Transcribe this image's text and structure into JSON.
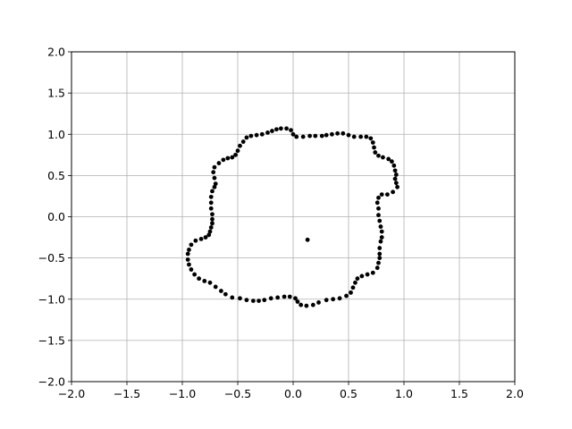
{
  "chart_data": {
    "type": "scatter",
    "title": "",
    "xlabel": "",
    "ylabel": "",
    "xlim": [
      -2.0,
      2.0
    ],
    "ylim": [
      -2.0,
      2.0
    ],
    "grid": true,
    "x_ticks": [
      -2.0,
      -1.5,
      -1.0,
      -0.5,
      0.0,
      0.5,
      1.0,
      1.5,
      2.0
    ],
    "y_ticks": [
      -2.0,
      -1.5,
      -1.0,
      -0.5,
      0.0,
      0.5,
      1.0,
      1.5,
      2.0
    ],
    "x_tick_labels": [
      "−2.0",
      "−1.5",
      "−1.0",
      "−0.5",
      "0.0",
      "0.5",
      "1.0",
      "1.5",
      "2.0"
    ],
    "y_tick_labels": [
      "−2.0",
      "−1.5",
      "−1.0",
      "−0.5",
      "0.0",
      "0.5",
      "1.0",
      "1.5",
      "2.0"
    ],
    "marker_color": "#000000",
    "grid_color": "#b0b0b0",
    "series": [
      {
        "values": [
          [
            0.93,
            0.41
          ],
          [
            0.94,
            0.36
          ],
          [
            0.9,
            0.3
          ],
          [
            0.85,
            0.27
          ],
          [
            0.8,
            0.27
          ],
          [
            0.77,
            0.23
          ],
          [
            0.76,
            0.17
          ],
          [
            0.77,
            0.1
          ],
          [
            0.77,
            0.02
          ],
          [
            0.78,
            -0.05
          ],
          [
            0.79,
            -0.12
          ],
          [
            0.8,
            -0.18
          ],
          [
            0.8,
            -0.25
          ],
          [
            0.79,
            -0.3
          ],
          [
            0.78,
            -0.38
          ],
          [
            0.78,
            -0.45
          ],
          [
            0.78,
            -0.5
          ],
          [
            0.77,
            -0.56
          ],
          [
            0.76,
            -0.62
          ],
          [
            0.72,
            -0.68
          ],
          [
            0.67,
            -0.7
          ],
          [
            0.62,
            -0.72
          ],
          [
            0.58,
            -0.75
          ],
          [
            0.56,
            -0.8
          ],
          [
            0.54,
            -0.86
          ],
          [
            0.52,
            -0.92
          ],
          [
            0.48,
            -0.96
          ],
          [
            0.42,
            -0.99
          ],
          [
            0.36,
            -1.0
          ],
          [
            0.3,
            -1.01
          ],
          [
            0.23,
            -1.04
          ],
          [
            0.18,
            -1.07
          ],
          [
            0.12,
            -1.08
          ],
          [
            0.07,
            -1.07
          ],
          [
            0.04,
            -1.03
          ],
          [
            0.02,
            -0.99
          ],
          [
            -0.03,
            -0.97
          ],
          [
            -0.08,
            -0.97
          ],
          [
            -0.14,
            -0.98
          ],
          [
            -0.2,
            -0.99
          ],
          [
            -0.26,
            -1.01
          ],
          [
            -0.31,
            -1.02
          ],
          [
            -0.36,
            -1.02
          ],
          [
            -0.42,
            -1.01
          ],
          [
            -0.48,
            -0.99
          ],
          [
            -0.55,
            -0.98
          ],
          [
            -0.61,
            -0.94
          ],
          [
            -0.65,
            -0.9
          ],
          [
            -0.7,
            -0.85
          ],
          [
            -0.75,
            -0.8
          ],
          [
            -0.8,
            -0.78
          ],
          [
            -0.85,
            -0.75
          ],
          [
            -0.89,
            -0.7
          ],
          [
            -0.92,
            -0.64
          ],
          [
            -0.94,
            -0.58
          ],
          [
            -0.95,
            -0.52
          ],
          [
            -0.95,
            -0.45
          ],
          [
            -0.94,
            -0.4
          ],
          [
            -0.92,
            -0.34
          ],
          [
            -0.88,
            -0.29
          ],
          [
            -0.83,
            -0.27
          ],
          [
            -0.79,
            -0.25
          ],
          [
            -0.76,
            -0.22
          ],
          [
            -0.75,
            -0.18
          ],
          [
            -0.74,
            -0.13
          ],
          [
            -0.73,
            -0.08
          ],
          [
            -0.73,
            -0.03
          ],
          [
            -0.73,
            0.03
          ],
          [
            -0.74,
            0.1
          ],
          [
            -0.74,
            0.17
          ],
          [
            -0.74,
            0.24
          ],
          [
            -0.73,
            0.31
          ],
          [
            -0.71,
            0.36
          ],
          [
            -0.7,
            0.4
          ],
          [
            -0.71,
            0.47
          ],
          [
            -0.72,
            0.54
          ],
          [
            -0.71,
            0.6
          ],
          [
            -0.67,
            0.65
          ],
          [
            -0.63,
            0.69
          ],
          [
            -0.59,
            0.71
          ],
          [
            -0.55,
            0.72
          ],
          [
            -0.52,
            0.75
          ],
          [
            -0.5,
            0.8
          ],
          [
            -0.48,
            0.86
          ],
          [
            -0.45,
            0.91
          ],
          [
            -0.42,
            0.96
          ],
          [
            -0.38,
            0.98
          ],
          [
            -0.33,
            0.99
          ],
          [
            -0.28,
            1.0
          ],
          [
            -0.23,
            1.02
          ],
          [
            -0.19,
            1.04
          ],
          [
            -0.15,
            1.06
          ],
          [
            -0.11,
            1.07
          ],
          [
            -0.06,
            1.07
          ],
          [
            -0.02,
            1.05
          ],
          [
            0.0,
            1.0
          ],
          [
            0.03,
            0.97
          ],
          [
            0.09,
            0.97
          ],
          [
            0.15,
            0.98
          ],
          [
            0.2,
            0.98
          ],
          [
            0.26,
            0.98
          ],
          [
            0.3,
            0.99
          ],
          [
            0.35,
            1.0
          ],
          [
            0.4,
            1.01
          ],
          [
            0.45,
            1.01
          ],
          [
            0.5,
            0.99
          ],
          [
            0.55,
            0.97
          ],
          [
            0.61,
            0.97
          ],
          [
            0.66,
            0.97
          ],
          [
            0.7,
            0.95
          ],
          [
            0.72,
            0.9
          ],
          [
            0.73,
            0.84
          ],
          [
            0.74,
            0.78
          ],
          [
            0.77,
            0.74
          ],
          [
            0.81,
            0.72
          ],
          [
            0.86,
            0.7
          ],
          [
            0.89,
            0.67
          ],
          [
            0.91,
            0.62
          ],
          [
            0.92,
            0.56
          ],
          [
            0.93,
            0.51
          ],
          [
            0.92,
            0.46
          ],
          [
            0.13,
            -0.28
          ]
        ]
      }
    ]
  }
}
